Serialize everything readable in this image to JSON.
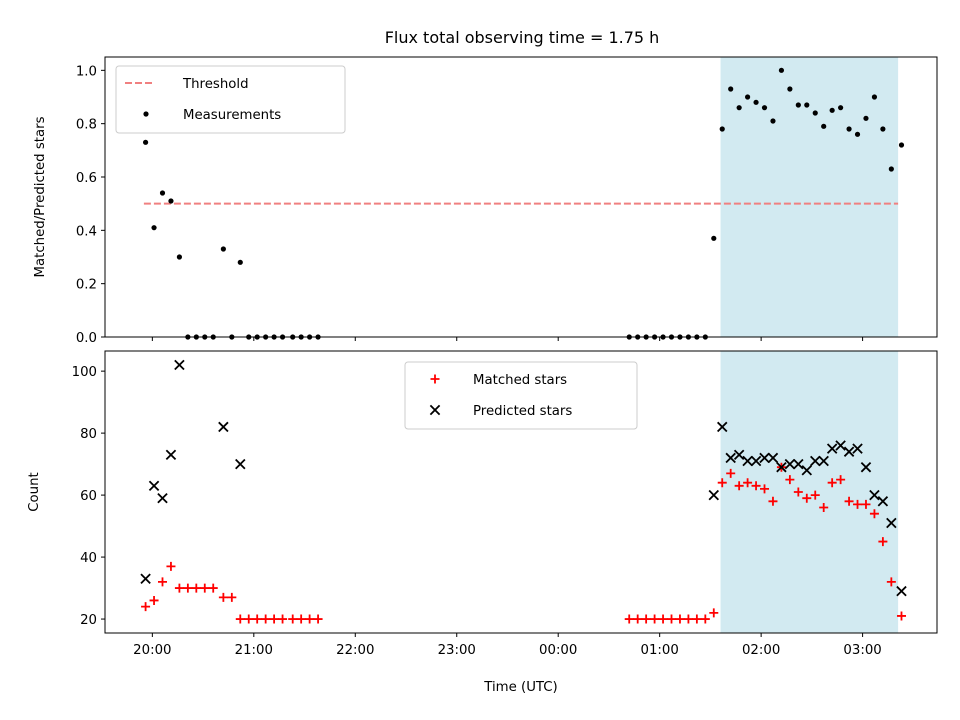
{
  "figure": {
    "title": "Flux total observing time = 1.75 h",
    "xlabel": "Time (UTC)",
    "xticks": [
      "20:00",
      "21:00",
      "22:00",
      "23:00",
      "00:00",
      "01:00",
      "02:00",
      "03:00"
    ]
  },
  "colors": {
    "threshold": "#f08080",
    "measurements": "#000000",
    "matched": "#ff0000",
    "predicted": "#000000",
    "span": "#add8e6"
  },
  "chart_data": [
    {
      "type": "scatter",
      "title": "Flux total observing time = 1.75 h",
      "ylabel": "Matched/Predicted stars",
      "ylim": [
        0,
        1.05
      ],
      "yticks": [
        "0.0",
        "0.2",
        "0.4",
        "0.6",
        "0.8",
        "1.0"
      ],
      "xlim": [
        "19:32",
        "03:44"
      ],
      "highlight_span": [
        "01:36",
        "03:21"
      ],
      "legend_position": "upper left",
      "threshold": {
        "name": "Threshold",
        "y": 0.5,
        "x_range": [
          "19:55",
          "03:21"
        ]
      },
      "series": [
        {
          "name": "Measurements",
          "x": [
            "19:56",
            "20:01",
            "20:06",
            "20:11",
            "20:16",
            "20:21",
            "20:26",
            "20:31",
            "20:36",
            "20:42",
            "20:47",
            "20:52",
            "20:57",
            "21:02",
            "21:07",
            "21:12",
            "21:17",
            "21:23",
            "21:28",
            "21:33",
            "21:38",
            "00:42",
            "00:47",
            "00:52",
            "00:57",
            "01:02",
            "01:07",
            "01:12",
            "01:17",
            "01:22",
            "01:27",
            "01:32",
            "01:37",
            "01:42",
            "01:47",
            "01:52",
            "01:57",
            "02:02",
            "02:07",
            "02:12",
            "02:17",
            "02:22",
            "02:27",
            "02:32",
            "02:37",
            "02:42",
            "02:47",
            "02:52",
            "02:57",
            "03:02",
            "03:07",
            "03:12",
            "03:17",
            "03:23"
          ],
          "y": [
            0.73,
            0.41,
            0.54,
            0.51,
            0.3,
            0.0,
            0.0,
            0.0,
            0.0,
            0.33,
            0.0,
            0.28,
            0.0,
            0.0,
            0.0,
            0.0,
            0.0,
            0.0,
            0.0,
            0.0,
            0.0,
            0.0,
            0.0,
            0.0,
            0.0,
            0.0,
            0.0,
            0.0,
            0.0,
            0.0,
            0.0,
            0.37,
            0.78,
            0.93,
            0.86,
            0.9,
            0.88,
            0.86,
            0.81,
            1.0,
            0.93,
            0.87,
            0.87,
            0.84,
            0.79,
            0.85,
            0.86,
            0.78,
            0.76,
            0.82,
            0.9,
            0.78,
            0.63,
            0.72
          ]
        }
      ]
    },
    {
      "type": "scatter",
      "ylabel": "Count",
      "ylim": [
        15.5,
        106.5
      ],
      "yticks": [
        "20",
        "40",
        "60",
        "80",
        "100"
      ],
      "xlim": [
        "19:32",
        "03:44"
      ],
      "highlight_span": [
        "01:36",
        "03:21"
      ],
      "legend_position": "upper center",
      "series": [
        {
          "name": "Matched stars",
          "x": [
            "19:56",
            "20:01",
            "20:06",
            "20:11",
            "20:16",
            "20:21",
            "20:26",
            "20:31",
            "20:36",
            "20:42",
            "20:47",
            "20:52",
            "20:57",
            "21:02",
            "21:07",
            "21:12",
            "21:17",
            "21:23",
            "21:28",
            "21:33",
            "21:38",
            "00:42",
            "00:47",
            "00:52",
            "00:57",
            "01:02",
            "01:07",
            "01:12",
            "01:17",
            "01:22",
            "01:27",
            "01:32",
            "01:37",
            "01:42",
            "01:47",
            "01:52",
            "01:57",
            "02:02",
            "02:07",
            "02:12",
            "02:17",
            "02:22",
            "02:27",
            "02:32",
            "02:37",
            "02:42",
            "02:47",
            "02:52",
            "02:57",
            "03:02",
            "03:07",
            "03:12",
            "03:17",
            "03:23"
          ],
          "y": [
            24,
            26,
            32,
            37,
            30,
            30,
            30,
            30,
            30,
            27,
            27,
            20,
            20,
            20,
            20,
            20,
            20,
            20,
            20,
            20,
            20,
            20,
            20,
            20,
            20,
            20,
            20,
            20,
            20,
            20,
            20,
            22,
            64,
            67,
            63,
            64,
            63,
            62,
            58,
            69,
            65,
            61,
            59,
            60,
            56,
            64,
            65,
            58,
            57,
            57,
            54,
            45,
            32,
            21
          ]
        },
        {
          "name": "Predicted stars",
          "x": [
            "19:56",
            "20:01",
            "20:06",
            "20:11",
            "20:16",
            "20:42",
            "20:52",
            "01:32",
            "01:37",
            "01:42",
            "01:47",
            "01:52",
            "01:57",
            "02:02",
            "02:07",
            "02:12",
            "02:17",
            "02:22",
            "02:27",
            "02:32",
            "02:37",
            "02:42",
            "02:47",
            "02:52",
            "02:57",
            "03:02",
            "03:07",
            "03:12",
            "03:17",
            "03:23"
          ],
          "y": [
            33,
            63,
            59,
            73,
            102,
            82,
            70,
            60,
            82,
            72,
            73,
            71,
            71,
            72,
            72,
            69,
            70,
            70,
            68,
            71,
            71,
            75,
            76,
            74,
            75,
            69,
            60,
            58,
            51,
            29
          ]
        }
      ]
    }
  ]
}
